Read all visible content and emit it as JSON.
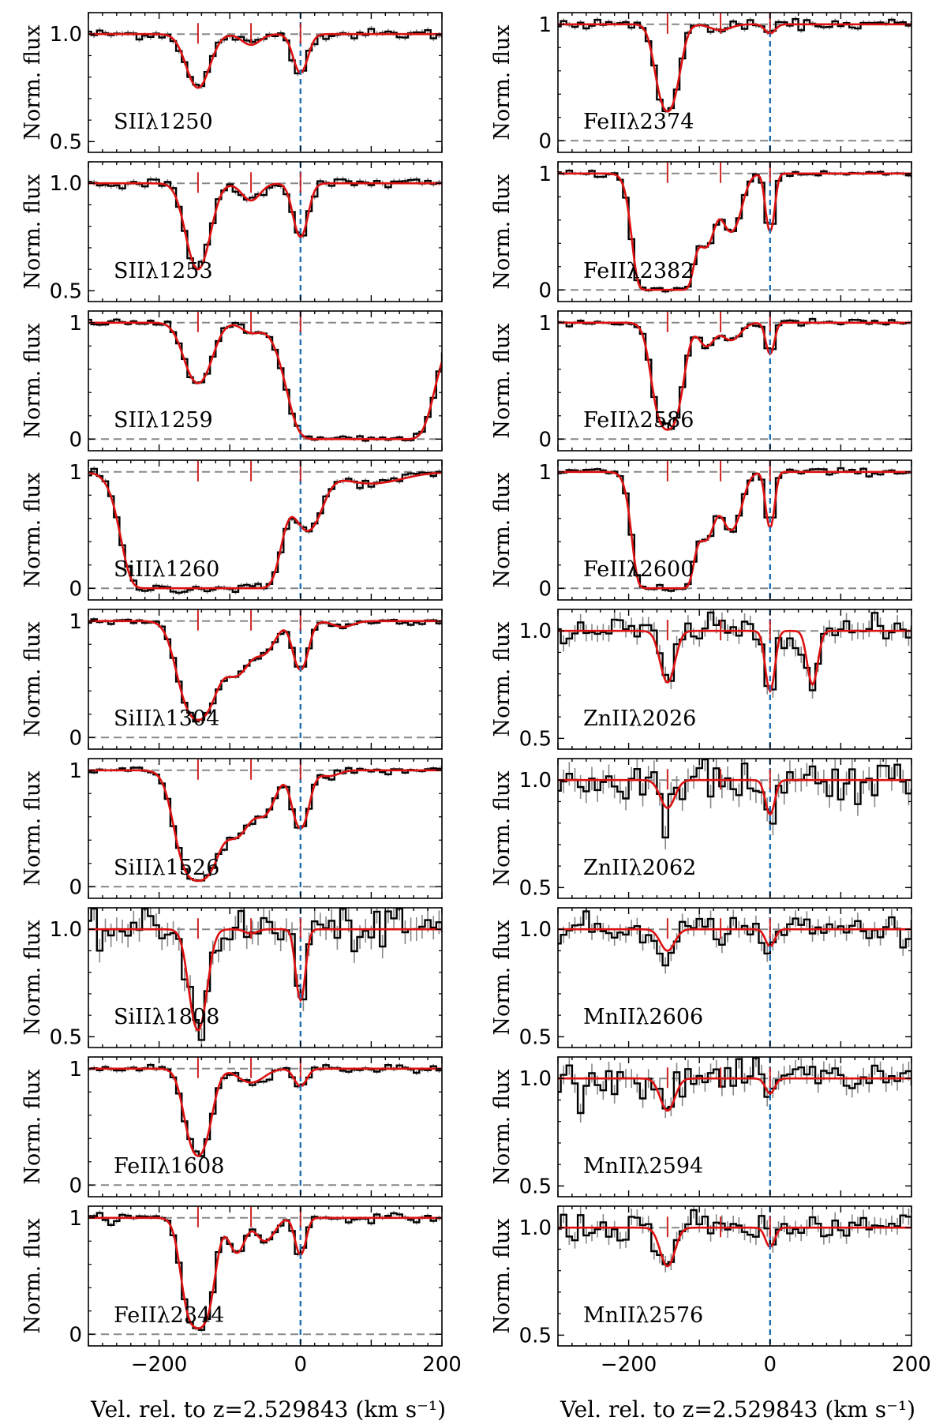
{
  "chart_data": {
    "type": "line",
    "xlim": [
      -300,
      200
    ],
    "x_ticks": [
      -200,
      0,
      200
    ],
    "x_tick_labels": [
      "−200",
      "0",
      "200"
    ],
    "xlabel": "Vel. rel. to z=2.529843 (km s⁻¹)",
    "ylabel": "Norm. flux",
    "component_velocities": [
      -145,
      -70,
      0
    ],
    "redshift_reference_velocity": 0,
    "colors": {
      "data": "#000000",
      "error": "#888888",
      "model": "#dd1111",
      "component": "#cc2222",
      "reference": "#1f6fb4",
      "continuum": "#888888"
    },
    "panels": [
      {
        "column": "left",
        "ion": "SII",
        "label": "SIIλ1250",
        "ylim": [
          0.45,
          1.1
        ],
        "yticks": [
          0.5,
          1.0
        ],
        "ytick_labels": [
          "0.5",
          "1.0"
        ],
        "model": [
          {
            "v": -145,
            "depth": 0.25,
            "b": 22
          },
          {
            "v": -70,
            "depth": 0.05,
            "b": 18
          },
          {
            "v": 0,
            "depth": 0.18,
            "b": 14
          }
        ],
        "noise": 0.012
      },
      {
        "column": "left",
        "ion": "SII",
        "label": "SIIλ1253",
        "ylim": [
          0.45,
          1.1
        ],
        "yticks": [
          0.5,
          1.0
        ],
        "ytick_labels": [
          "0.5",
          "1.0"
        ],
        "model": [
          {
            "v": -145,
            "depth": 0.4,
            "b": 22
          },
          {
            "v": -70,
            "depth": 0.08,
            "b": 18
          },
          {
            "v": 0,
            "depth": 0.25,
            "b": 14
          }
        ],
        "noise": 0.012
      },
      {
        "column": "left",
        "ion": "SII",
        "label": "SIIλ1259",
        "ylim": [
          -0.1,
          1.1
        ],
        "yticks": [
          0,
          1
        ],
        "ytick_labels": [
          "0",
          "1"
        ],
        "model": [
          {
            "v": -145,
            "depth": 0.52,
            "b": 24
          },
          {
            "v": -70,
            "depth": 0.08,
            "b": 18
          },
          {
            "v": 85,
            "depth": 1.0,
            "b": 55,
            "sat": 3.5
          }
        ],
        "noise": 0.015
      },
      {
        "column": "left",
        "ion": "SiII",
        "label": "SiIIλ1260",
        "ylim": [
          -0.1,
          1.1
        ],
        "yticks": [
          0,
          1
        ],
        "ytick_labels": [
          "0",
          "1"
        ],
        "model": [
          {
            "v": -170,
            "depth": 1.0,
            "b": 45,
            "sat": 3.0
          },
          {
            "v": -95,
            "depth": 1.0,
            "b": 35,
            "sat": 2.5
          },
          {
            "v": -40,
            "depth": 0.45,
            "b": 20
          },
          {
            "v": 10,
            "depth": 0.5,
            "b": 25
          },
          {
            "v": 100,
            "depth": 0.1,
            "b": 60
          }
        ],
        "noise": 0.02
      },
      {
        "column": "left",
        "ion": "SiII",
        "label": "SiIIλ1304",
        "ylim": [
          -0.1,
          1.1
        ],
        "yticks": [
          0,
          1
        ],
        "ytick_labels": [
          "0",
          "1"
        ],
        "model": [
          {
            "v": -145,
            "depth": 0.85,
            "b": 28
          },
          {
            "v": -90,
            "depth": 0.45,
            "b": 25
          },
          {
            "v": -50,
            "depth": 0.25,
            "b": 20
          },
          {
            "v": 0,
            "depth": 0.42,
            "b": 14
          },
          {
            "v": 60,
            "depth": 0.05,
            "b": 20
          }
        ],
        "noise": 0.015
      },
      {
        "column": "left",
        "ion": "SiII",
        "label": "SiIIλ1526",
        "ylim": [
          -0.1,
          1.1
        ],
        "yticks": [
          0,
          1
        ],
        "ytick_labels": [
          "0",
          "1"
        ],
        "model": [
          {
            "v": -145,
            "depth": 0.95,
            "b": 28
          },
          {
            "v": -90,
            "depth": 0.55,
            "b": 25
          },
          {
            "v": -50,
            "depth": 0.35,
            "b": 20
          },
          {
            "v": 0,
            "depth": 0.5,
            "b": 15
          },
          {
            "v": 40,
            "depth": 0.05,
            "b": 20
          }
        ],
        "noise": 0.015
      },
      {
        "column": "left",
        "ion": "SiII",
        "label": "SiIIλ1808",
        "ylim": [
          0.45,
          1.1
        ],
        "yticks": [
          0.5,
          1.0
        ],
        "ytick_labels": [
          "0.5",
          "1.0"
        ],
        "model": [
          {
            "v": -145,
            "depth": 0.47,
            "b": 16
          },
          {
            "v": -70,
            "depth": 0.02,
            "b": 12
          },
          {
            "v": 0,
            "depth": 0.33,
            "b": 9
          }
        ],
        "noise": 0.05
      },
      {
        "column": "left",
        "ion": "FeII",
        "label": "FeIIλ1608",
        "ylim": [
          -0.1,
          1.1
        ],
        "yticks": [
          0,
          1
        ],
        "ytick_labels": [
          "0",
          "1"
        ],
        "model": [
          {
            "v": -145,
            "depth": 0.75,
            "b": 20
          },
          {
            "v": -70,
            "depth": 0.12,
            "b": 25
          },
          {
            "v": 0,
            "depth": 0.15,
            "b": 12
          }
        ],
        "noise": 0.018
      },
      {
        "column": "left",
        "ion": "FeII",
        "label": "FeIIλ2344",
        "ylim": [
          -0.1,
          1.1
        ],
        "yticks": [
          0,
          1
        ],
        "ytick_labels": [
          "0",
          "1"
        ],
        "model": [
          {
            "v": -145,
            "depth": 0.95,
            "b": 20
          },
          {
            "v": -90,
            "depth": 0.3,
            "b": 15
          },
          {
            "v": -50,
            "depth": 0.2,
            "b": 18
          },
          {
            "v": 0,
            "depth": 0.32,
            "b": 10
          }
        ],
        "noise": 0.018
      },
      {
        "column": "right",
        "ion": "FeII",
        "label": "FeIIλ2374",
        "ylim": [
          -0.1,
          1.1
        ],
        "yticks": [
          0,
          1
        ],
        "ytick_labels": [
          "0",
          "1"
        ],
        "model": [
          {
            "v": -145,
            "depth": 0.75,
            "b": 18
          },
          {
            "v": -70,
            "depth": 0.05,
            "b": 20
          },
          {
            "v": 0,
            "depth": 0.08,
            "b": 10
          }
        ],
        "noise": 0.02
      },
      {
        "column": "right",
        "ion": "FeII",
        "label": "FeIIλ2382",
        "ylim": [
          -0.1,
          1.1
        ],
        "yticks": [
          0,
          1
        ],
        "ytick_labels": [
          "0",
          "1"
        ],
        "model": [
          {
            "v": -150,
            "depth": 1.0,
            "b": 25,
            "sat": 2.5
          },
          {
            "v": -90,
            "depth": 0.6,
            "b": 15
          },
          {
            "v": -55,
            "depth": 0.5,
            "b": 18
          },
          {
            "v": 0,
            "depth": 0.5,
            "b": 8
          }
        ],
        "noise": 0.015
      },
      {
        "column": "right",
        "ion": "FeII",
        "label": "FeIIλ2586",
        "ylim": [
          -0.1,
          1.1
        ],
        "yticks": [
          0,
          1
        ],
        "ytick_labels": [
          "0",
          "1"
        ],
        "model": [
          {
            "v": -145,
            "depth": 0.92,
            "b": 20
          },
          {
            "v": -90,
            "depth": 0.2,
            "b": 15
          },
          {
            "v": -55,
            "depth": 0.15,
            "b": 18
          },
          {
            "v": 0,
            "depth": 0.27,
            "b": 8
          }
        ],
        "noise": 0.015
      },
      {
        "column": "right",
        "ion": "FeII",
        "label": "FeIIλ2600",
        "ylim": [
          -0.1,
          1.1
        ],
        "yticks": [
          0,
          1
        ],
        "ytick_labels": [
          "0",
          "1"
        ],
        "model": [
          {
            "v": -150,
            "depth": 1.0,
            "b": 25,
            "sat": 2.5
          },
          {
            "v": -90,
            "depth": 0.55,
            "b": 15
          },
          {
            "v": -55,
            "depth": 0.5,
            "b": 18
          },
          {
            "v": 0,
            "depth": 0.48,
            "b": 8
          }
        ],
        "noise": 0.015
      },
      {
        "column": "right",
        "ion": "ZnII",
        "label": "ZnIIλ2026",
        "ylim": [
          0.45,
          1.1
        ],
        "yticks": [
          0.5,
          1.0
        ],
        "ytick_labels": [
          "0.5",
          "1.0"
        ],
        "model": [
          {
            "v": -145,
            "depth": 0.24,
            "b": 14
          },
          {
            "v": 0,
            "depth": 0.28,
            "b": 9
          },
          {
            "v": 60,
            "depth": 0.25,
            "b": 10
          }
        ],
        "noise": 0.035
      },
      {
        "column": "right",
        "ion": "ZnII",
        "label": "ZnIIλ2062",
        "ylim": [
          0.45,
          1.1
        ],
        "yticks": [
          0.5,
          1.0
        ],
        "ytick_labels": [
          "0.5",
          "1.0"
        ],
        "model": [
          {
            "v": -145,
            "depth": 0.13,
            "b": 14
          },
          {
            "v": 0,
            "depth": 0.16,
            "b": 9
          }
        ],
        "noise": 0.05
      },
      {
        "column": "right",
        "ion": "MnII",
        "label": "MnIIλ2606",
        "ylim": [
          0.45,
          1.1
        ],
        "yticks": [
          0.5,
          1.0
        ],
        "ytick_labels": [
          "0.5",
          "1.0"
        ],
        "model": [
          {
            "v": -145,
            "depth": 0.1,
            "b": 14
          },
          {
            "v": 0,
            "depth": 0.08,
            "b": 9
          }
        ],
        "noise": 0.035
      },
      {
        "column": "right",
        "ion": "MnII",
        "label": "MnIIλ2594",
        "ylim": [
          0.45,
          1.1
        ],
        "yticks": [
          0.5,
          1.0
        ],
        "ytick_labels": [
          "0.5",
          "1.0"
        ],
        "model": [
          {
            "v": -145,
            "depth": 0.15,
            "b": 14
          },
          {
            "v": 0,
            "depth": 0.07,
            "b": 9
          }
        ],
        "noise": 0.04
      },
      {
        "column": "right",
        "ion": "MnII",
        "label": "MnIIλ2576",
        "ylim": [
          0.45,
          1.1
        ],
        "yticks": [
          0.5,
          1.0
        ],
        "ytick_labels": [
          "0.5",
          "1.0"
        ],
        "model": [
          {
            "v": -145,
            "depth": 0.18,
            "b": 14
          },
          {
            "v": 0,
            "depth": 0.09,
            "b": 9
          }
        ],
        "noise": 0.035
      }
    ]
  }
}
